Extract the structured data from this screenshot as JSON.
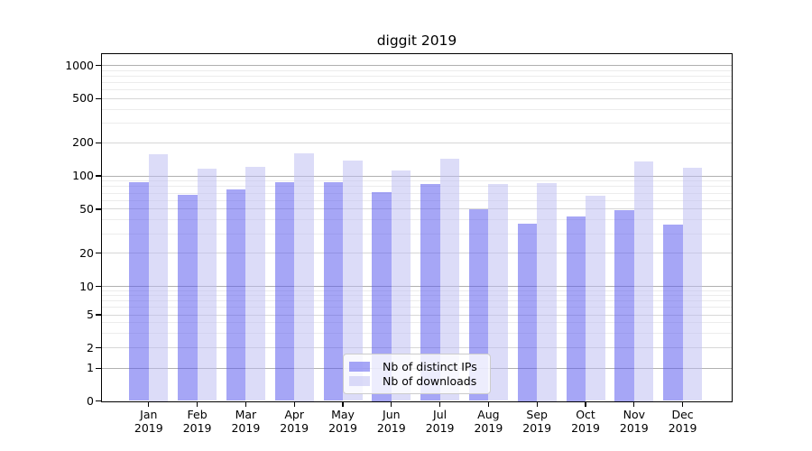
{
  "title": "diggit 2019",
  "chart_data": {
    "type": "bar",
    "title": "diggit 2019",
    "categories": [
      "Jan 2019",
      "Feb 2019",
      "Mar 2019",
      "Apr 2019",
      "May 2019",
      "Jun 2019",
      "Jul 2019",
      "Aug 2019",
      "Sep 2019",
      "Oct 2019",
      "Nov 2019",
      "Dec 2019"
    ],
    "series": [
      {
        "name": "Nb of distinct IPs",
        "color": "rgba(85,85,238,0.52)",
        "values": [
          87,
          67,
          76,
          88,
          87,
          72,
          85,
          50,
          37,
          43,
          49,
          36
        ]
      },
      {
        "name": "Nb of downloads",
        "color": "rgba(187,187,242,0.52)",
        "values": [
          157,
          117,
          120,
          160,
          138,
          111,
          142,
          84,
          86,
          66,
          135,
          119
        ]
      }
    ],
    "yticks": [
      0,
      1,
      2,
      5,
      10,
      20,
      50,
      100,
      200,
      500,
      1000
    ],
    "yscale": "symlog",
    "ylim": [
      0,
      1270
    ],
    "xlabel": "",
    "ylabel": "",
    "grid": true,
    "legend_position": "lower center"
  },
  "colors": {
    "background": "#ffffff",
    "major_gridline": "#b0b0b0",
    "mid_gridline": "#d7d7d7",
    "minor_gridline": "#ececec",
    "spine": "#000000",
    "text": "#000000"
  }
}
